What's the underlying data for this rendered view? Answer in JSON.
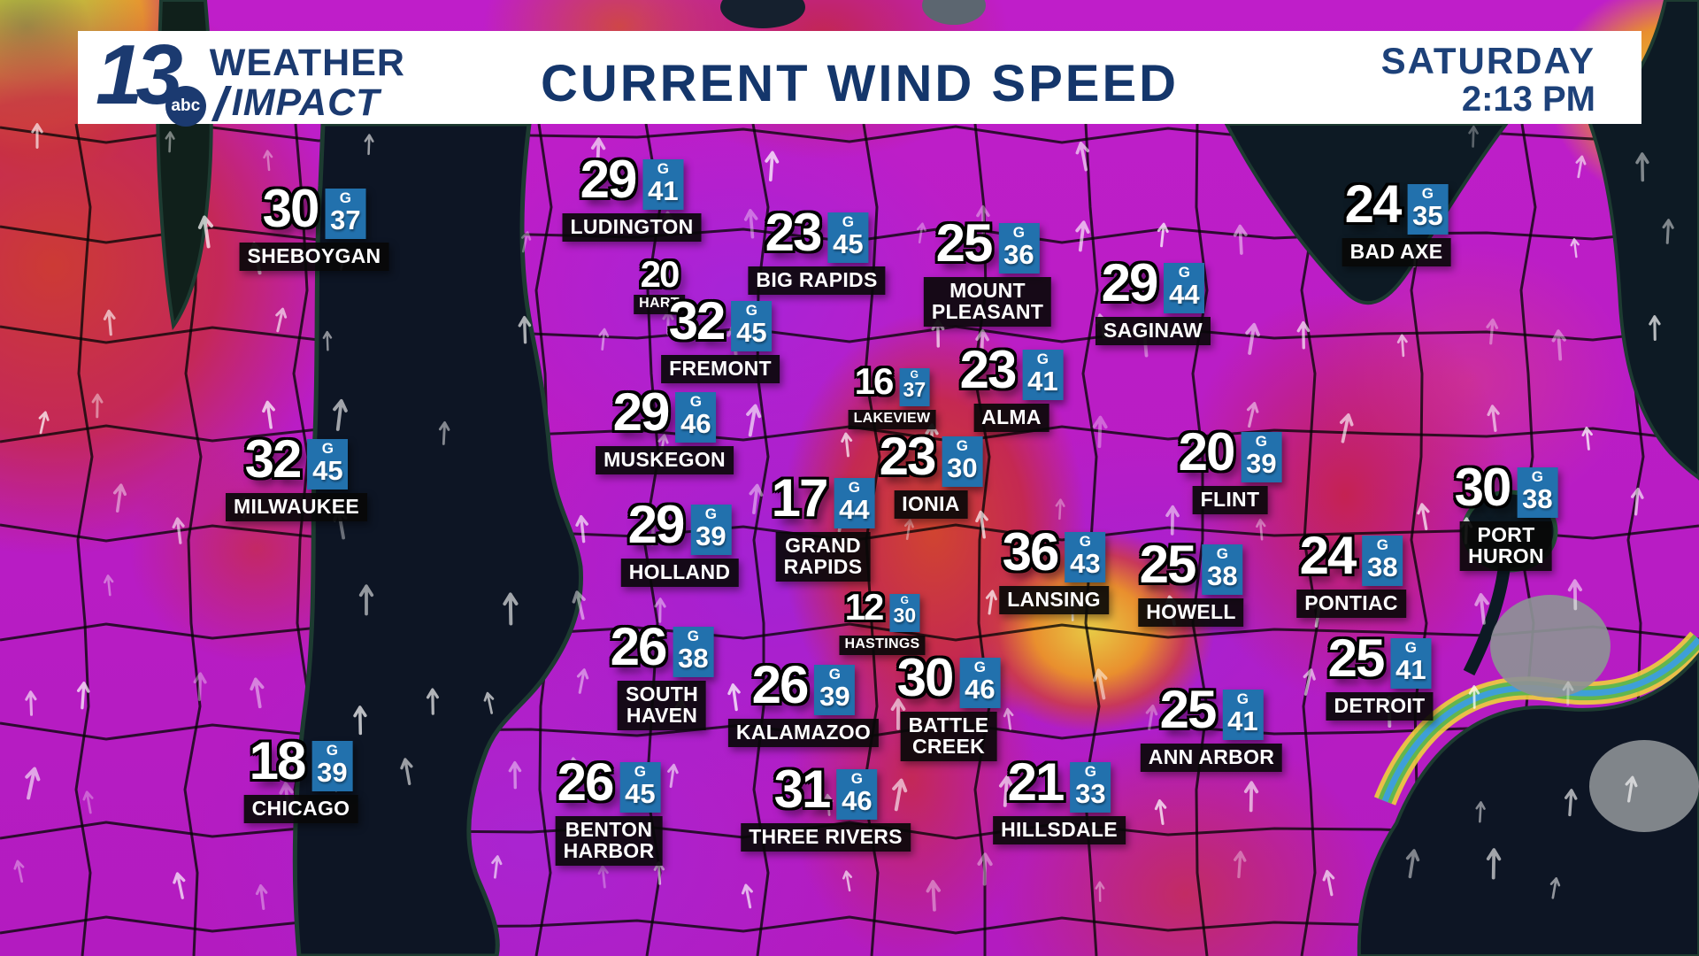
{
  "header": {
    "logo": {
      "number": "13",
      "network": "abc",
      "line1": "WEATHER",
      "line2": "IMPACT"
    },
    "title": "CURRENT WIND SPEED",
    "day": "SATURDAY",
    "time": "2:13 PM"
  },
  "gust_prefix": "G",
  "colors": {
    "banner_text": "#14366b",
    "gust_box_blue": "#2271ad",
    "label_bg": "#080808",
    "map_magenta": "#bf1ec9",
    "map_purple": "#9e24d8",
    "map_red": "#c62a45",
    "water_dark": "#0d1524"
  },
  "stations": [
    {
      "name": "SHEBOYGAN",
      "speed": 30,
      "gust": 37
    },
    {
      "name": "LUDINGTON",
      "speed": 29,
      "gust": 41
    },
    {
      "name": "BIG RAPIDS",
      "speed": 23,
      "gust": 45
    },
    {
      "name": "MOUNT\nPLEASANT",
      "speed": 25,
      "gust": 36
    },
    {
      "name": "SAGINAW",
      "speed": 29,
      "gust": 44
    },
    {
      "name": "BAD AXE",
      "speed": 24,
      "gust": 35
    },
    {
      "name": "HART",
      "speed": 20,
      "gust": null,
      "size": "small"
    },
    {
      "name": "FREMONT",
      "speed": 32,
      "gust": 45
    },
    {
      "name": "LAKEVIEW",
      "speed": 16,
      "gust": 37,
      "size": "small"
    },
    {
      "name": "ALMA",
      "speed": 23,
      "gust": 41
    },
    {
      "name": "MUSKEGON",
      "speed": 29,
      "gust": 46
    },
    {
      "name": "MILWAUKEE",
      "speed": 32,
      "gust": 45
    },
    {
      "name": "FLINT",
      "speed": 20,
      "gust": 39
    },
    {
      "name": "IONIA",
      "speed": 23,
      "gust": 30
    },
    {
      "name": "GRAND\nRAPIDS",
      "speed": 17,
      "gust": 44
    },
    {
      "name": "PORT\nHURON",
      "speed": 30,
      "gust": 38
    },
    {
      "name": "HOLLAND",
      "speed": 29,
      "gust": 39
    },
    {
      "name": "LANSING",
      "speed": 36,
      "gust": 43
    },
    {
      "name": "HOWELL",
      "speed": 25,
      "gust": 38
    },
    {
      "name": "PONTIAC",
      "speed": 24,
      "gust": 38
    },
    {
      "name": "HASTINGS",
      "speed": 12,
      "gust": 30,
      "size": "small"
    },
    {
      "name": "DETROIT",
      "speed": 25,
      "gust": 41
    },
    {
      "name": "SOUTH\nHAVEN",
      "speed": 26,
      "gust": 38
    },
    {
      "name": "KALAMAZOO",
      "speed": 26,
      "gust": 39
    },
    {
      "name": "BATTLE\nCREEK",
      "speed": 30,
      "gust": 46
    },
    {
      "name": "ANN ARBOR",
      "speed": 25,
      "gust": 41
    },
    {
      "name": "CHICAGO",
      "speed": 18,
      "gust": 39
    },
    {
      "name": "BENTON\nHARBOR",
      "speed": 26,
      "gust": 45
    },
    {
      "name": "THREE RIVERS",
      "speed": 31,
      "gust": 46
    },
    {
      "name": "HILLSDALE",
      "speed": 21,
      "gust": 33
    }
  ]
}
